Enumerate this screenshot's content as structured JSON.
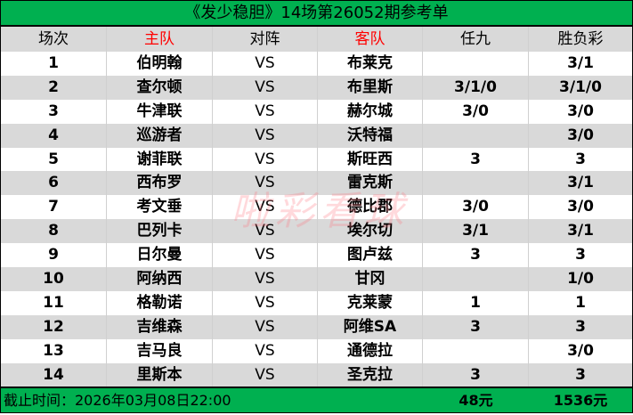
{
  "title": "《发少稳胆》14场第26052期参考单",
  "headers": [
    "场次",
    "主队",
    "对阵",
    "客队",
    "任九",
    "胜负彩"
  ],
  "colors": {
    "header_bg": "#00b050",
    "alt_row": "#d9d9d9",
    "highlight_header": "#ff0000"
  },
  "rows": [
    {
      "no": "1",
      "home": "伯明翰",
      "vs": "VS",
      "away": "布莱克",
      "r9": "",
      "sfc": "3/1"
    },
    {
      "no": "2",
      "home": "查尔顿",
      "vs": "VS",
      "away": "布里斯",
      "r9": "3/1/0",
      "sfc": "3/1/0"
    },
    {
      "no": "3",
      "home": "牛津联",
      "vs": "VS",
      "away": "赫尔城",
      "r9": "3/0",
      "sfc": "3/0"
    },
    {
      "no": "4",
      "home": "巡游者",
      "vs": "VS",
      "away": "沃特福",
      "r9": "",
      "sfc": "3/0"
    },
    {
      "no": "5",
      "home": "谢菲联",
      "vs": "VS",
      "away": "斯旺西",
      "r9": "3",
      "sfc": "3"
    },
    {
      "no": "6",
      "home": "西布罗",
      "vs": "VS",
      "away": "雷克斯",
      "r9": "",
      "sfc": "3/1"
    },
    {
      "no": "7",
      "home": "考文垂",
      "vs": "VS",
      "away": "德比郡",
      "r9": "3/0",
      "sfc": "3/0"
    },
    {
      "no": "8",
      "home": "巴列卡",
      "vs": "VS",
      "away": "埃尔切",
      "r9": "3/1",
      "sfc": "3/1"
    },
    {
      "no": "9",
      "home": "日尔曼",
      "vs": "VS",
      "away": "图卢兹",
      "r9": "3",
      "sfc": "3"
    },
    {
      "no": "10",
      "home": "阿纳西",
      "vs": "VS",
      "away": "甘冈",
      "r9": "",
      "sfc": "1/0"
    },
    {
      "no": "11",
      "home": "格勒诺",
      "vs": "VS",
      "away": "克莱蒙",
      "r9": "1",
      "sfc": "1"
    },
    {
      "no": "12",
      "home": "吉维森",
      "vs": "VS",
      "away": "阿维SA",
      "r9": "3",
      "sfc": "3"
    },
    {
      "no": "13",
      "home": "吉马良",
      "vs": "VS",
      "away": "通德拉",
      "r9": "",
      "sfc": "3/0"
    },
    {
      "no": "14",
      "home": "里斯本",
      "vs": "VS",
      "away": "圣克拉",
      "r9": "3",
      "sfc": "3"
    }
  ],
  "footer": {
    "deadline": "截止时间：2026年03月08日22:00",
    "r9_cost": "48元",
    "sfc_cost": "1536元"
  },
  "watermark": "啦彩看球"
}
